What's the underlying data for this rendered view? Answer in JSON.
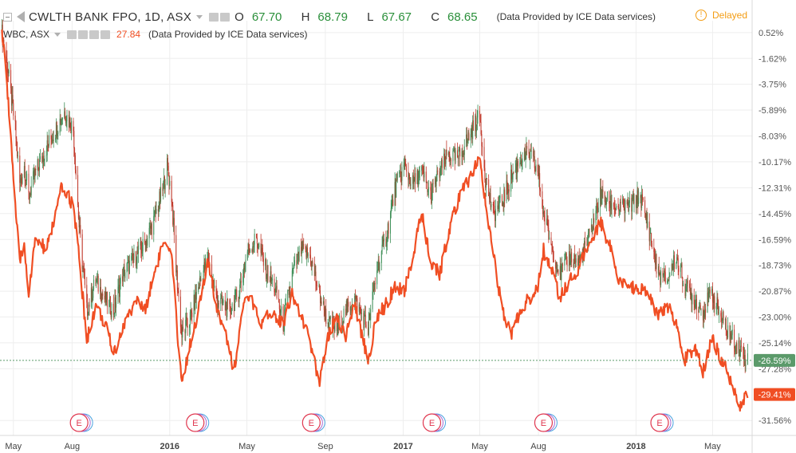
{
  "legend": {
    "symbol": "CWLTH BANK FPO, 1D, ASX",
    "o_label": "O",
    "o_value": "67.70",
    "h_label": "H",
    "h_value": "68.79",
    "l_label": "L",
    "l_value": "67.67",
    "c_label": "C",
    "c_value": "68.65",
    "provider": "(Data Provided by ICE Data services)",
    "compare_symbol": "WBC, ASX",
    "compare_value": "27.84",
    "compare_provider": "(Data Provided by ICE Data services)"
  },
  "status": {
    "delayed": "Delayed"
  },
  "colors": {
    "compare_line": "#f04e23",
    "candle_up": "#3e8e57",
    "candle_down": "#c0392b",
    "current_badge": "#5b9a6a",
    "compare_badge": "#f04e23",
    "earnings": "#e0374f",
    "grid": "#eeeeee"
  },
  "chart_data": {
    "type": "line",
    "title": "",
    "xlabel": "",
    "ylabel": "",
    "y_unit": "%",
    "ylim": [
      -32.8,
      1.5
    ],
    "y_ticks": [
      0.52,
      -1.62,
      -3.75,
      -5.89,
      -8.03,
      -10.17,
      -12.31,
      -14.45,
      -16.59,
      -18.73,
      -20.87,
      -23.0,
      -25.14,
      -27.28,
      -31.56
    ],
    "y_tick_labels": [
      "0.52%",
      "-1.62%",
      "-3.75%",
      "-5.89%",
      "-8.03%",
      "-10.17%",
      "-12.31%",
      "-14.45%",
      "-16.59%",
      "-18.73%",
      "-20.87%",
      "-23.00%",
      "-25.14%",
      "-27.28%",
      "-31.56%"
    ],
    "x_ticks": [
      "2015-05-01",
      "2015-08-01",
      "2016-01-01",
      "2016-05-01",
      "2016-09-01",
      "2017-01-01",
      "2017-05-01",
      "2017-08-01",
      "2018-01-01",
      "2018-05-01"
    ],
    "x_tick_labels": [
      "May",
      "Aug",
      "2016",
      "May",
      "Sep",
      "2017",
      "May",
      "Aug",
      "2018",
      "May"
    ],
    "xlim": [
      "2015-04-10",
      "2018-07-02"
    ],
    "grid": true,
    "last_values": [
      {
        "series": "CWLTH BANK FPO, 1D, ASX",
        "label": "-26.59%",
        "value": -26.59
      },
      {
        "series": "WBC, ASX",
        "label": "-29.41%",
        "value": -29.41
      }
    ],
    "earnings_events": [
      {
        "date": "2015-08-12",
        "label": "E"
      },
      {
        "date": "2016-02-10",
        "label": "E"
      },
      {
        "date": "2016-08-10",
        "label": "E"
      },
      {
        "date": "2017-02-15",
        "label": "E"
      },
      {
        "date": "2017-08-09",
        "label": "E"
      },
      {
        "date": "2018-02-07",
        "label": "E"
      }
    ],
    "series": [
      {
        "name": "CWLTH BANK FPO, 1D, ASX",
        "kind": "candlestick",
        "points": [
          [
            "2015-04-13",
            0.5
          ],
          [
            "2015-04-22",
            -2.5
          ],
          [
            "2015-05-04",
            -7.5
          ],
          [
            "2015-05-11",
            -12.0
          ],
          [
            "2015-05-18",
            -10.5
          ],
          [
            "2015-05-25",
            -13.0
          ],
          [
            "2015-06-05",
            -11.0
          ],
          [
            "2015-06-22",
            -9.0
          ],
          [
            "2015-07-06",
            -7.5
          ],
          [
            "2015-07-20",
            -6.0
          ],
          [
            "2015-08-03",
            -7.5
          ],
          [
            "2015-08-12",
            -15.5
          ],
          [
            "2015-08-24",
            -22.5
          ],
          [
            "2015-09-07",
            -20.0
          ],
          [
            "2015-09-21",
            -21.5
          ],
          [
            "2015-10-05",
            -22.5
          ],
          [
            "2015-10-19",
            -19.5
          ],
          [
            "2015-11-09",
            -18.0
          ],
          [
            "2015-11-23",
            -17.0
          ],
          [
            "2015-12-07",
            -15.0
          ],
          [
            "2015-12-21",
            -12.5
          ],
          [
            "2015-12-28",
            -10.5
          ],
          [
            "2016-01-04",
            -13.0
          ],
          [
            "2016-01-11",
            -19.0
          ],
          [
            "2016-01-20",
            -24.5
          ],
          [
            "2016-02-03",
            -23.0
          ],
          [
            "2016-02-15",
            -20.5
          ],
          [
            "2016-03-01",
            -18.0
          ],
          [
            "2016-03-14",
            -21.5
          ],
          [
            "2016-04-04",
            -22.5
          ],
          [
            "2016-04-18",
            -21.0
          ],
          [
            "2016-05-02",
            -17.5
          ],
          [
            "2016-05-16",
            -16.5
          ],
          [
            "2016-05-30",
            -19.0
          ],
          [
            "2016-06-13",
            -20.5
          ],
          [
            "2016-06-27",
            -23.5
          ],
          [
            "2016-07-11",
            -19.5
          ],
          [
            "2016-07-25",
            -17.5
          ],
          [
            "2016-08-08",
            -18.0
          ],
          [
            "2016-08-22",
            -21.0
          ],
          [
            "2016-09-05",
            -23.5
          ],
          [
            "2016-09-19",
            -24.0
          ],
          [
            "2016-10-03",
            -22.5
          ],
          [
            "2016-10-17",
            -21.5
          ],
          [
            "2016-11-07",
            -24.0
          ],
          [
            "2016-11-21",
            -19.0
          ],
          [
            "2016-12-05",
            -16.5
          ],
          [
            "2016-12-19",
            -12.5
          ],
          [
            "2017-01-02",
            -10.5
          ],
          [
            "2017-01-16",
            -12.0
          ],
          [
            "2017-01-30",
            -11.0
          ],
          [
            "2017-02-13",
            -13.0
          ],
          [
            "2017-02-27",
            -11.0
          ],
          [
            "2017-03-13",
            -9.5
          ],
          [
            "2017-03-27",
            -10.0
          ],
          [
            "2017-04-10",
            -8.5
          ],
          [
            "2017-04-24",
            -7.0
          ],
          [
            "2017-05-01",
            -6.5
          ],
          [
            "2017-05-10",
            -11.5
          ],
          [
            "2017-05-22",
            -14.5
          ],
          [
            "2017-06-05",
            -13.5
          ],
          [
            "2017-06-19",
            -11.5
          ],
          [
            "2017-07-03",
            -10.0
          ],
          [
            "2017-07-17",
            -9.5
          ],
          [
            "2017-07-31",
            -11.0
          ],
          [
            "2017-08-09",
            -14.5
          ],
          [
            "2017-08-21",
            -17.0
          ],
          [
            "2017-09-04",
            -19.5
          ],
          [
            "2017-09-18",
            -18.0
          ],
          [
            "2017-10-02",
            -18.5
          ],
          [
            "2017-10-16",
            -17.0
          ],
          [
            "2017-11-06",
            -13.0
          ],
          [
            "2017-11-20",
            -13.5
          ],
          [
            "2017-12-04",
            -14.0
          ],
          [
            "2017-12-18",
            -14.0
          ],
          [
            "2018-01-08",
            -13.0
          ],
          [
            "2018-01-22",
            -16.0
          ],
          [
            "2018-02-05",
            -19.5
          ],
          [
            "2018-02-19",
            -20.0
          ],
          [
            "2018-03-05",
            -18.0
          ],
          [
            "2018-03-19",
            -20.5
          ],
          [
            "2018-04-02",
            -21.5
          ],
          [
            "2018-04-16",
            -22.5
          ],
          [
            "2018-04-30",
            -21.0
          ],
          [
            "2018-05-14",
            -23.0
          ],
          [
            "2018-05-28",
            -24.5
          ],
          [
            "2018-06-11",
            -25.5
          ],
          [
            "2018-06-25",
            -26.59
          ]
        ]
      },
      {
        "name": "WBC, ASX",
        "kind": "line",
        "points": [
          [
            "2015-04-13",
            0.5
          ],
          [
            "2015-04-20",
            -3.0
          ],
          [
            "2015-04-27",
            -8.0
          ],
          [
            "2015-05-04",
            -14.0
          ],
          [
            "2015-05-11",
            -18.5
          ],
          [
            "2015-05-18",
            -17.0
          ],
          [
            "2015-05-25",
            -21.0
          ],
          [
            "2015-06-05",
            -16.5
          ],
          [
            "2015-06-22",
            -17.5
          ],
          [
            "2015-07-06",
            -14.5
          ],
          [
            "2015-07-15",
            -12.5
          ],
          [
            "2015-07-27",
            -13.0
          ],
          [
            "2015-08-03",
            -14.0
          ],
          [
            "2015-08-12",
            -18.0
          ],
          [
            "2015-08-24",
            -25.0
          ],
          [
            "2015-09-07",
            -22.0
          ],
          [
            "2015-09-21",
            -23.5
          ],
          [
            "2015-10-05",
            -26.0
          ],
          [
            "2015-10-19",
            -24.0
          ],
          [
            "2015-11-09",
            -21.5
          ],
          [
            "2015-11-23",
            -22.5
          ],
          [
            "2015-12-07",
            -19.5
          ],
          [
            "2015-12-21",
            -17.0
          ],
          [
            "2016-01-04",
            -18.0
          ],
          [
            "2016-01-11",
            -23.0
          ],
          [
            "2016-01-20",
            -28.5
          ],
          [
            "2016-02-03",
            -25.0
          ],
          [
            "2016-02-15",
            -22.5
          ],
          [
            "2016-03-01",
            -18.5
          ],
          [
            "2016-03-14",
            -22.0
          ],
          [
            "2016-03-28",
            -24.0
          ],
          [
            "2016-04-11",
            -27.5
          ],
          [
            "2016-04-25",
            -22.0
          ],
          [
            "2016-05-09",
            -21.5
          ],
          [
            "2016-05-23",
            -24.0
          ],
          [
            "2016-06-06",
            -22.5
          ],
          [
            "2016-06-27",
            -23.5
          ],
          [
            "2016-07-11",
            -21.0
          ],
          [
            "2016-07-25",
            -23.0
          ],
          [
            "2016-08-08",
            -25.0
          ],
          [
            "2016-08-22",
            -28.5
          ],
          [
            "2016-09-05",
            -24.5
          ],
          [
            "2016-09-19",
            -23.0
          ],
          [
            "2016-10-03",
            -24.5
          ],
          [
            "2016-10-17",
            -22.0
          ],
          [
            "2016-11-07",
            -26.5
          ],
          [
            "2016-11-21",
            -23.0
          ],
          [
            "2016-12-05",
            -22.0
          ],
          [
            "2016-12-19",
            -20.5
          ],
          [
            "2017-01-02",
            -21.0
          ],
          [
            "2017-01-16",
            -18.0
          ],
          [
            "2017-01-30",
            -14.5
          ],
          [
            "2017-02-13",
            -18.5
          ],
          [
            "2017-02-27",
            -19.5
          ],
          [
            "2017-03-13",
            -16.0
          ],
          [
            "2017-03-27",
            -13.5
          ],
          [
            "2017-04-10",
            -12.0
          ],
          [
            "2017-04-24",
            -10.5
          ],
          [
            "2017-05-01",
            -10.0
          ],
          [
            "2017-05-10",
            -13.5
          ],
          [
            "2017-05-22",
            -17.5
          ],
          [
            "2017-06-05",
            -22.5
          ],
          [
            "2017-06-19",
            -24.5
          ],
          [
            "2017-07-03",
            -22.5
          ],
          [
            "2017-07-17",
            -21.5
          ],
          [
            "2017-07-31",
            -20.5
          ],
          [
            "2017-08-09",
            -17.5
          ],
          [
            "2017-08-21",
            -19.0
          ],
          [
            "2017-09-04",
            -21.5
          ],
          [
            "2017-09-18",
            -20.0
          ],
          [
            "2017-10-02",
            -19.0
          ],
          [
            "2017-10-16",
            -17.5
          ],
          [
            "2017-11-06",
            -15.0
          ],
          [
            "2017-11-20",
            -17.0
          ],
          [
            "2017-12-04",
            -20.0
          ],
          [
            "2017-12-18",
            -20.5
          ],
          [
            "2018-01-08",
            -20.5
          ],
          [
            "2018-01-22",
            -21.5
          ],
          [
            "2018-02-05",
            -23.0
          ],
          [
            "2018-02-19",
            -22.0
          ],
          [
            "2018-03-05",
            -23.5
          ],
          [
            "2018-03-19",
            -26.5
          ],
          [
            "2018-04-02",
            -25.5
          ],
          [
            "2018-04-16",
            -27.5
          ],
          [
            "2018-04-30",
            -24.5
          ],
          [
            "2018-05-14",
            -26.5
          ],
          [
            "2018-05-28",
            -28.0
          ],
          [
            "2018-06-11",
            -30.5
          ],
          [
            "2018-06-25",
            -29.41
          ]
        ]
      }
    ]
  }
}
